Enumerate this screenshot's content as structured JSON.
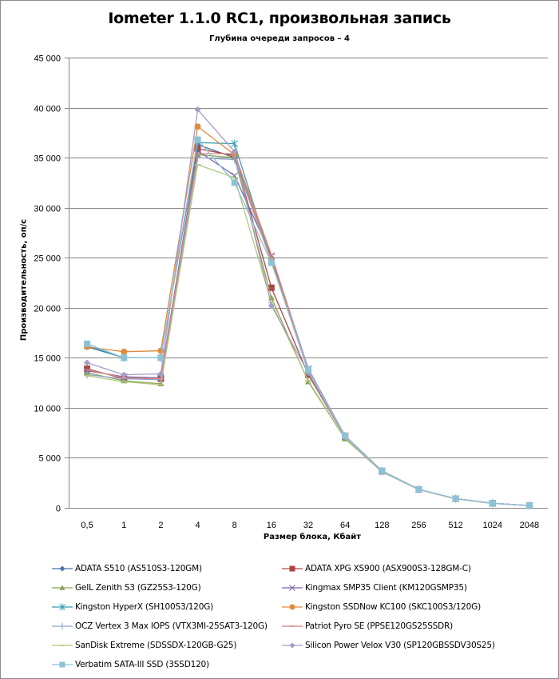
{
  "chart_data": {
    "type": "line",
    "title": "Iometer 1.1.0 RC1, произвольная запись",
    "subtitle": "Глубина очереди запросов – 4",
    "xlabel": "Размер блока, Кбайт",
    "ylabel": "Производительность, оп/с",
    "ylim": [
      0,
      45000
    ],
    "yticks": [
      0,
      5000,
      10000,
      15000,
      20000,
      25000,
      30000,
      35000,
      40000,
      45000
    ],
    "ytick_labels": [
      "0",
      "5 000",
      "10 000",
      "15 000",
      "20 000",
      "25 000",
      "30 000",
      "35 000",
      "40 000",
      "45 000"
    ],
    "grid": true,
    "legend_position": "bottom",
    "categories": [
      "0,5",
      "1",
      "2",
      "4",
      "8",
      "16",
      "32",
      "64",
      "128",
      "256",
      "512",
      "1024",
      "2048"
    ],
    "series": [
      {
        "name": "ADATA S510 (AS510S3-120GM)",
        "color": "#4a72a8",
        "marker": "diamond",
        "values": [
          16100,
          15000,
          15000,
          36300,
          35000,
          25000,
          13700,
          7200,
          3700,
          1850,
          920,
          460,
          230
        ]
      },
      {
        "name": "ADATA XPG XS900 (ASX900S3-128GM-C)",
        "color": "#b04444",
        "marker": "square",
        "values": [
          13900,
          12900,
          12900,
          35900,
          35200,
          22000,
          13300,
          7100,
          3650,
          1840,
          910,
          455,
          228
        ]
      },
      {
        "name": "GeIL Zenith S3 (GZ25S3-120G)",
        "color": "#87a353",
        "marker": "triangle",
        "values": [
          13500,
          12700,
          12400,
          35300,
          35000,
          21000,
          12600,
          6900,
          3600,
          1820,
          900,
          450,
          225
        ]
      },
      {
        "name": "Kingmax SMP35 Client (KM120GSMP35)",
        "color": "#7b63a3",
        "marker": "x",
        "values": [
          13700,
          13100,
          13000,
          35700,
          33200,
          25200,
          13900,
          7200,
          3700,
          1850,
          920,
          460,
          230
        ]
      },
      {
        "name": "Kingston HyperX (SH100S3/120G)",
        "color": "#3d9bb3",
        "marker": "star",
        "values": [
          16200,
          15000,
          15000,
          36500,
          36400,
          24700,
          13800,
          7200,
          3700,
          1850,
          920,
          460,
          230
        ]
      },
      {
        "name": "Kingston SSDNow KC100 (SKC100S3/120G)",
        "color": "#e08a3c",
        "marker": "circle",
        "values": [
          16100,
          15600,
          15700,
          38100,
          35300,
          24800,
          13700,
          7200,
          3700,
          1850,
          920,
          460,
          230
        ]
      },
      {
        "name": "OCZ Vertex 3 Max IOPS (VTX3MI-25SAT3-120G)",
        "color": "#8fa6cf",
        "marker": "plus",
        "values": [
          13300,
          12900,
          12800,
          35000,
          34800,
          24600,
          13600,
          7150,
          3680,
          1840,
          915,
          455,
          228
        ]
      },
      {
        "name": "Patriot Pyro SE (PPSE120GS25SSDR)",
        "color": "#d48585",
        "marker": "dash",
        "values": [
          13800,
          13000,
          12900,
          35400,
          35400,
          25300,
          13800,
          7200,
          3700,
          1850,
          920,
          460,
          230
        ]
      },
      {
        "name": "SanDisk Extreme (SDSSDX-120GB-G25)",
        "color": "#aec880",
        "marker": "dash",
        "values": [
          13200,
          12600,
          12300,
          34300,
          33000,
          20500,
          12700,
          6950,
          3600,
          1820,
          900,
          450,
          225
        ]
      },
      {
        "name": "Silicon Power Velox V30 (SP120GBSSDV30S25)",
        "color": "#a89bc8",
        "marker": "diamond",
        "values": [
          14500,
          13300,
          13400,
          39800,
          35600,
          20200,
          13500,
          7100,
          3650,
          1840,
          910,
          455,
          228
        ]
      },
      {
        "name": "Verbatim SATA-III SSD (3SSD120)",
        "color": "#8dc2d6",
        "marker": "square",
        "values": [
          16400,
          15000,
          15000,
          36800,
          32500,
          24500,
          13800,
          7200,
          3700,
          1850,
          920,
          460,
          230
        ]
      }
    ]
  }
}
